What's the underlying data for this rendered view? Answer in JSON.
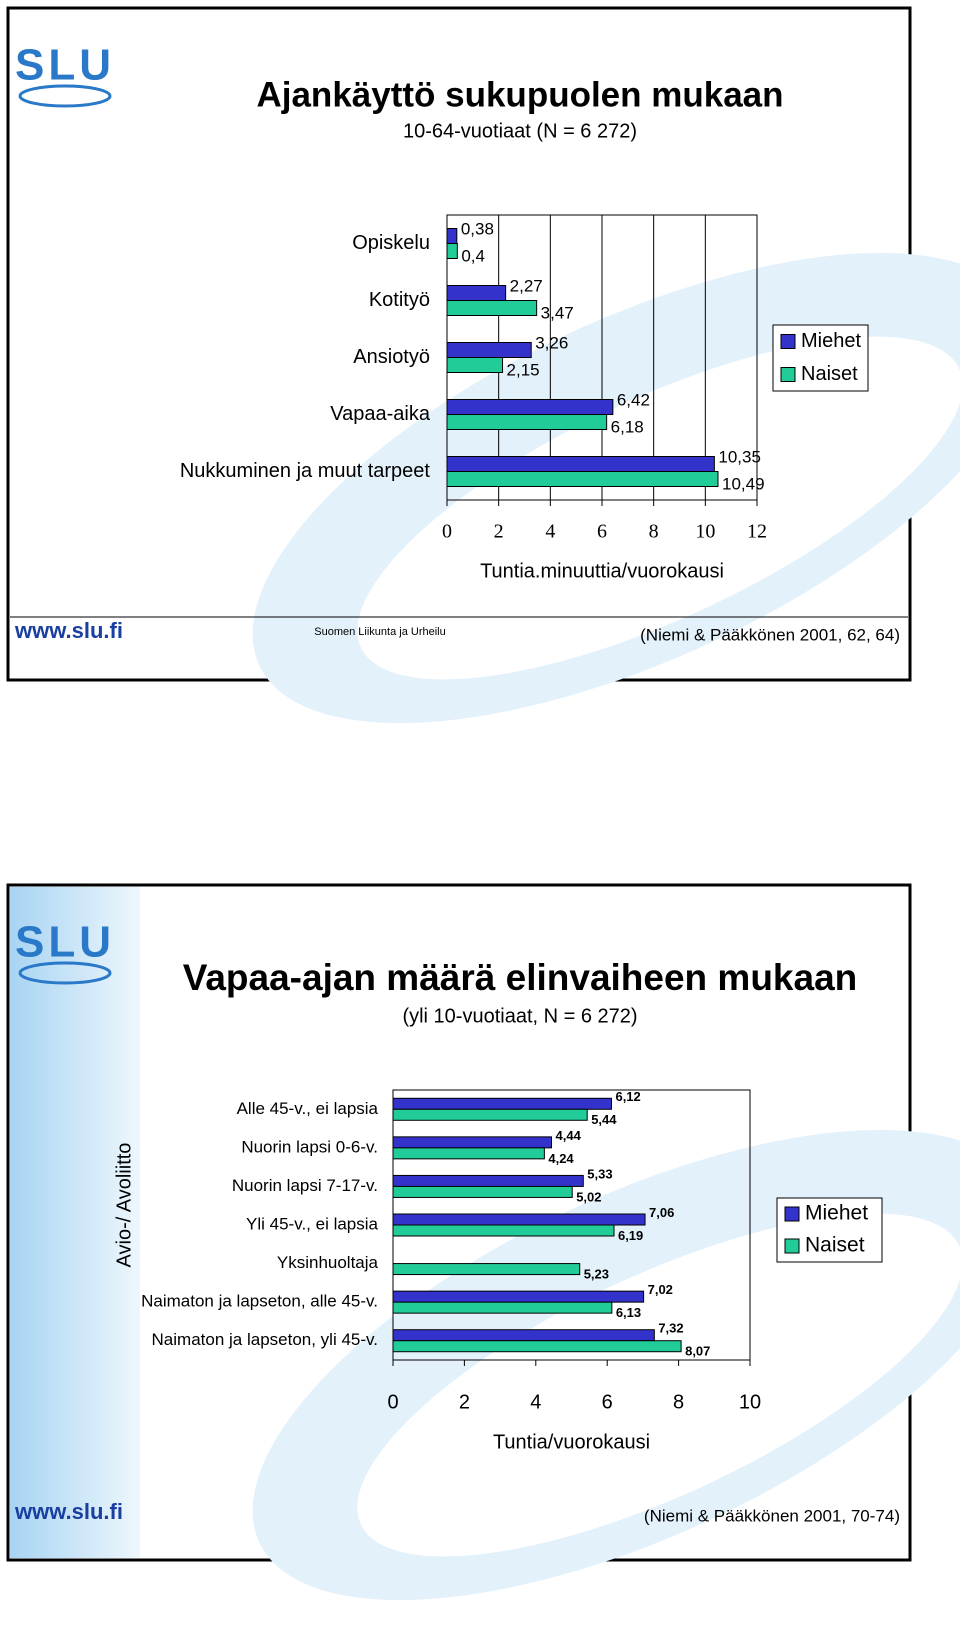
{
  "chart_data": [
    {
      "type": "bar",
      "orientation": "horizontal",
      "logo": "SLU",
      "title": "Ajankäyttö sukupuolen mukaan",
      "subtitle": "10-64-vuotiaat (N = 6 272)",
      "categories": [
        "Opiskelu",
        "Kotityö",
        "Ansiotyö",
        "Vapaa-aika",
        "Nukkuminen ja muut tarpeet"
      ],
      "series": [
        {
          "name": "Miehet",
          "color": "#3333cc",
          "values": [
            0.38,
            2.27,
            3.26,
            6.42,
            10.35
          ],
          "value_labels": [
            "0,38",
            "2,27",
            "3,26",
            "6,42",
            "10,35"
          ]
        },
        {
          "name": "Naiset",
          "color": "#22cc99",
          "values": [
            0.4,
            3.47,
            2.15,
            6.18,
            10.49
          ],
          "value_labels": [
            "0,4",
            "3,47",
            "2,15",
            "6,18",
            "10,49"
          ]
        }
      ],
      "xlim": [
        0,
        12
      ],
      "xticks": [
        0,
        2,
        4,
        6,
        8,
        10,
        12
      ],
      "grid": true,
      "legend": "right",
      "xlabel": "Tuntia.minuuttia/vuorokausi",
      "url": "www.slu.fi",
      "organization": "Suomen Liikunta ja Urheilu",
      "source": "(Niemi & Pääkkönen 2001, 62, 64)"
    },
    {
      "type": "bar",
      "orientation": "horizontal",
      "logo": "SLU",
      "title": "Vapaa-ajan määrä elinvaiheen mukaan",
      "subtitle": "(yli 10-vuotiaat, N = 6 272)",
      "group_label": "Avio-/ Avoliitto",
      "categories": [
        "Alle 45-v., ei lapsia",
        "Nuorin lapsi 0-6-v.",
        "Nuorin lapsi 7-17-v.",
        "Yli 45-v., ei lapsia",
        "Yksinhuoltaja",
        "Naimaton ja lapseton, alle 45-v.",
        "Naimaton ja lapseton, yli 45-v."
      ],
      "series": [
        {
          "name": "Miehet",
          "color": "#3333cc",
          "values": [
            6.12,
            4.44,
            5.33,
            7.06,
            null,
            7.02,
            7.32
          ],
          "value_labels": [
            "6,12",
            "4,44",
            "5,33",
            "7,06",
            null,
            "7,02",
            "7,32"
          ]
        },
        {
          "name": "Naiset",
          "color": "#22cc99",
          "values": [
            5.44,
            4.24,
            5.02,
            6.19,
            5.23,
            6.13,
            8.07
          ],
          "value_labels": [
            "5,44",
            "4,24",
            "5,02",
            "6,19",
            "5,23",
            "6,13",
            "8,07"
          ]
        }
      ],
      "xlim": [
        0,
        10
      ],
      "xticks": [
        0,
        2,
        4,
        6,
        8,
        10
      ],
      "grid": false,
      "legend": "right",
      "xlabel": "Tuntia/vuorokausi",
      "url": "www.slu.fi",
      "source": "(Niemi & Pääkkönen 2001,  70-74)"
    }
  ]
}
